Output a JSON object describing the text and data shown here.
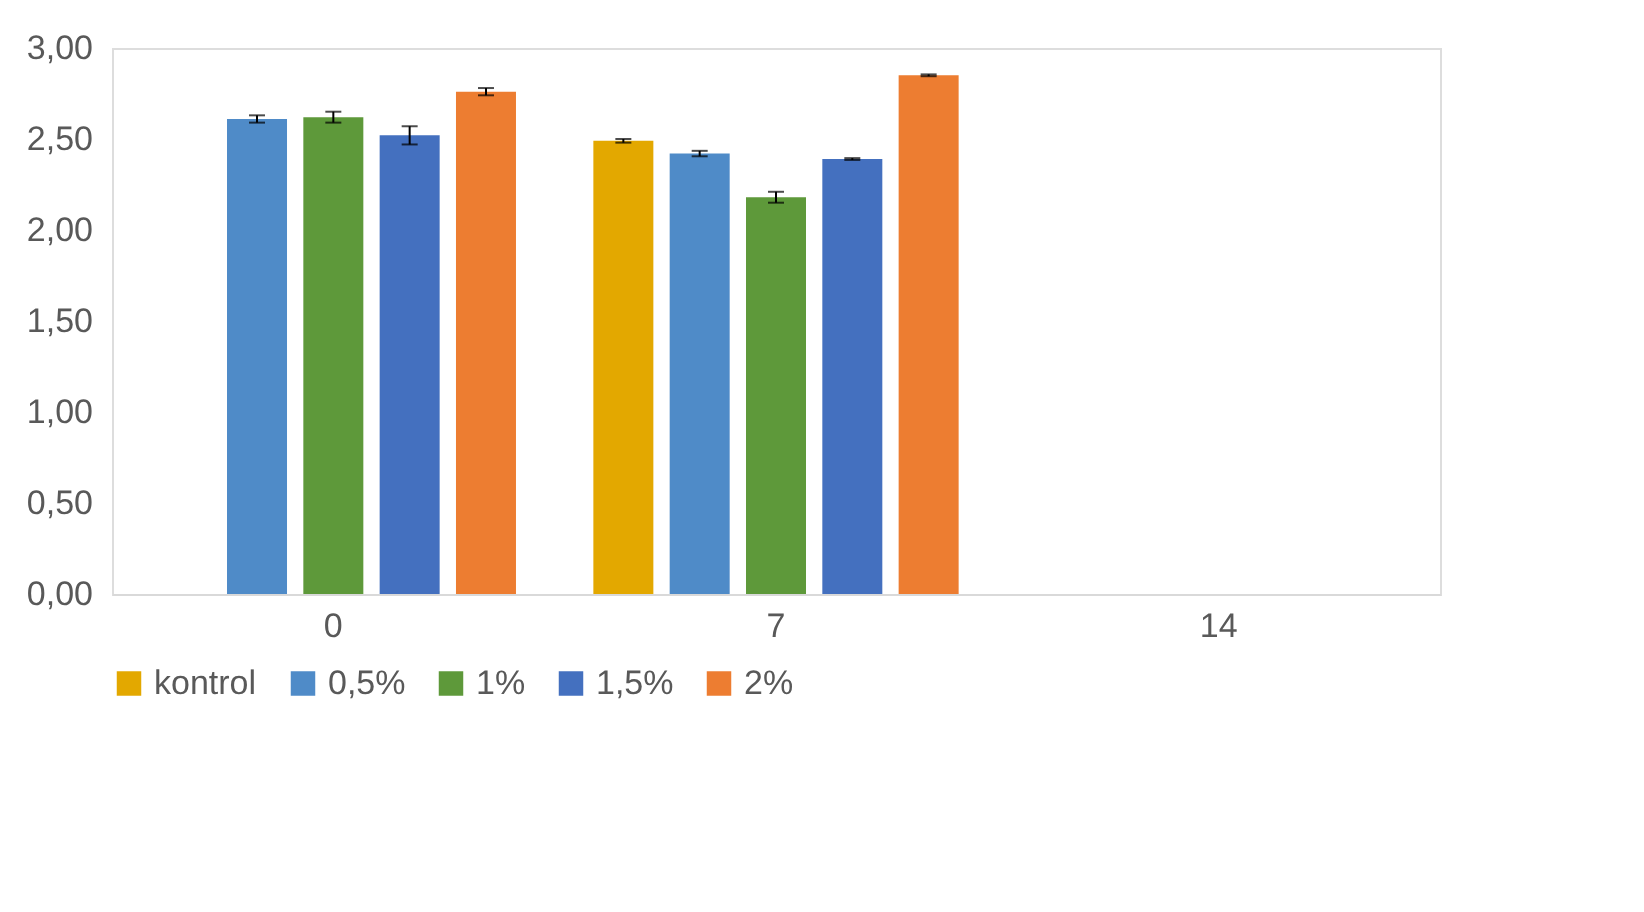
{
  "chart_data": {
    "type": "bar",
    "categories": [
      "0",
      "7",
      "14"
    ],
    "series": [
      {
        "name": "kontrol",
        "color": "#e3a800",
        "values": [
          null,
          2.49,
          null
        ],
        "errors": [
          null,
          0.01,
          null
        ]
      },
      {
        "name": "0,5%",
        "color": "#4f8bc8",
        "values": [
          2.61,
          2.42,
          null
        ],
        "errors": [
          0.02,
          0.015,
          null
        ]
      },
      {
        "name": "1%",
        "color": "#5e993a",
        "values": [
          2.62,
          2.18,
          null
        ],
        "errors": [
          0.03,
          0.03,
          null
        ]
      },
      {
        "name": "1,5%",
        "color": "#4470bf",
        "values": [
          2.52,
          2.39,
          null
        ],
        "errors": [
          0.05,
          0.005,
          null
        ]
      },
      {
        "name": "2%",
        "color": "#ed7d31",
        "values": [
          2.76,
          2.85,
          null
        ],
        "errors": [
          0.02,
          0.005,
          null
        ]
      }
    ],
    "ylim": [
      0,
      3
    ],
    "yticks": [
      {
        "value": 0,
        "label": "0,00"
      },
      {
        "value": 0.5,
        "label": "0,50"
      },
      {
        "value": 1,
        "label": "1,00"
      },
      {
        "value": 1.5,
        "label": "1,50"
      },
      {
        "value": 2,
        "label": "2,00"
      },
      {
        "value": 2.5,
        "label": "2,50"
      },
      {
        "value": 3,
        "label": "3,00"
      }
    ],
    "grid": false,
    "legend": "bottom"
  }
}
